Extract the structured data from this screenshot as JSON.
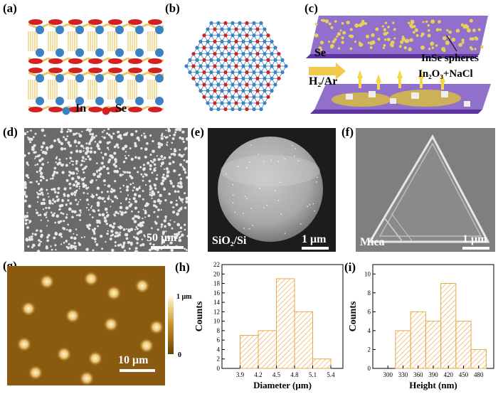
{
  "panel_labels": {
    "a": "(a)",
    "b": "(b)",
    "c": "(c)",
    "d": "(d)",
    "e": "(e)",
    "f": "(f)",
    "g": "(g)",
    "h": "(h)",
    "i": "(i)"
  },
  "panel_a": {
    "legend_in": "In",
    "legend_se": "Se",
    "colors": {
      "in": "#3b82c4",
      "se": "#d42020",
      "bond": "#e8c860"
    }
  },
  "panel_c": {
    "reactant": "Se",
    "gas": "H₂/Ar",
    "product": "InSe spheres",
    "precursor": "In₂O₃+NaCl"
  },
  "panel_d": {
    "scale_bar": "50 μm"
  },
  "panel_e": {
    "substrate": "SiO₂/Si",
    "scale_bar": "1 μm"
  },
  "panel_f": {
    "substrate": "Mica",
    "scale_bar": "1 μm"
  },
  "panel_g": {
    "colorbar_max": "1 μm",
    "colorbar_min": "0",
    "scale_bar": "10 μm"
  },
  "chart_data": [
    {
      "type": "bar",
      "panel": "h",
      "xlabel": "Diameter (μm)",
      "ylabel": "Counts",
      "x_ticks": [
        "3.9",
        "4.2",
        "4.5",
        "4.8",
        "5.1",
        "5.4"
      ],
      "bins": [
        [
          3.9,
          4.2
        ],
        [
          4.2,
          4.5
        ],
        [
          4.5,
          4.8
        ],
        [
          4.8,
          5.1
        ],
        [
          5.1,
          5.4
        ]
      ],
      "values": [
        7,
        8,
        19,
        12,
        2
      ],
      "xlim": [
        3.6,
        5.6
      ],
      "ylim": [
        0,
        22
      ],
      "y_ticks": [
        "0",
        "2",
        "4",
        "6",
        "8",
        "10",
        "12",
        "14",
        "16",
        "18",
        "20",
        "22"
      ]
    },
    {
      "type": "bar",
      "panel": "i",
      "xlabel": "Height (nm)",
      "ylabel": "Counts",
      "x_ticks": [
        "300",
        "330",
        "360",
        "390",
        "420",
        "450",
        "480"
      ],
      "bins": [
        [
          315,
          345
        ],
        [
          345,
          375
        ],
        [
          375,
          405
        ],
        [
          405,
          435
        ],
        [
          435,
          465
        ],
        [
          465,
          495
        ]
      ],
      "values": [
        4,
        6,
        5,
        9,
        5,
        2
      ],
      "xlim": [
        270,
        510
      ],
      "ylim": [
        0,
        11
      ],
      "y_ticks": [
        "0",
        "2",
        "4",
        "6",
        "8",
        "10"
      ]
    }
  ]
}
